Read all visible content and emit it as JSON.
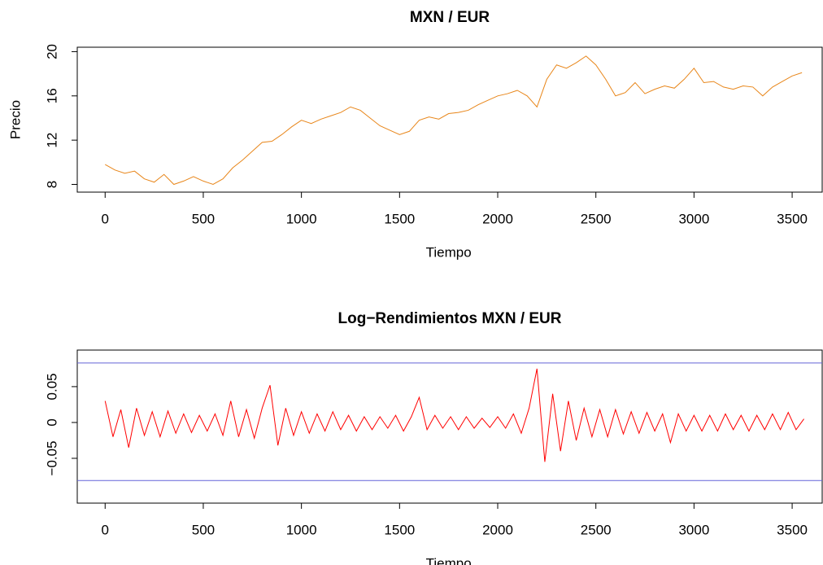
{
  "chart_data": [
    {
      "type": "line",
      "title": "MXN / EUR",
      "x_label": "Tiempo",
      "y_label": "Precio",
      "xlim": [
        -142,
        3653
      ],
      "ylim": [
        7.3,
        20.4
      ],
      "xticks": [
        0,
        500,
        1000,
        1500,
        2000,
        2500,
        3000,
        3500
      ],
      "yticks": [
        8,
        12,
        16,
        20
      ],
      "series": [
        {
          "color": "#e8861a",
          "x": [
            0,
            50,
            100,
            150,
            200,
            250,
            300,
            350,
            400,
            450,
            500,
            550,
            600,
            650,
            700,
            750,
            800,
            850,
            900,
            950,
            1000,
            1050,
            1100,
            1150,
            1200,
            1250,
            1300,
            1350,
            1400,
            1450,
            1500,
            1550,
            1600,
            1650,
            1700,
            1750,
            1800,
            1850,
            1900,
            1950,
            2000,
            2050,
            2100,
            2150,
            2200,
            2250,
            2300,
            2350,
            2400,
            2450,
            2500,
            2550,
            2600,
            2650,
            2700,
            2750,
            2800,
            2850,
            2900,
            2950,
            3000,
            3050,
            3100,
            3150,
            3200,
            3250,
            3300,
            3350,
            3400,
            3450,
            3500,
            3550
          ],
          "values": [
            9.8,
            9.3,
            9.0,
            9.2,
            8.5,
            8.2,
            8.9,
            8.0,
            8.3,
            8.7,
            8.3,
            8.0,
            8.5,
            9.5,
            10.2,
            11.0,
            11.8,
            11.9,
            12.5,
            13.2,
            13.8,
            13.5,
            13.9,
            14.2,
            14.5,
            15.0,
            14.7,
            14.0,
            13.3,
            12.9,
            12.5,
            12.8,
            13.8,
            14.1,
            13.9,
            14.4,
            14.5,
            14.7,
            15.2,
            15.6,
            16.0,
            16.2,
            16.5,
            16.0,
            15.0,
            17.5,
            18.8,
            18.5,
            19.0,
            19.6,
            18.8,
            17.5,
            16.0,
            16.3,
            17.2,
            16.2,
            16.6,
            16.9,
            16.7,
            17.5,
            18.5,
            17.2,
            17.3,
            16.8,
            16.6,
            16.9,
            16.8,
            16.0,
            16.8,
            17.3,
            17.8,
            18.1
          ]
        }
      ]
    },
    {
      "type": "line",
      "title": "Log−Rendimientos MXN / EUR",
      "x_label": "Tiempo",
      "xlim": [
        -142,
        3653
      ],
      "ylim": [
        -0.1125,
        0.101
      ],
      "xticks": [
        0,
        500,
        1000,
        1500,
        2000,
        2500,
        3000,
        3500
      ],
      "yticks": [
        {
          "value": -0.05,
          "label": "−0.05"
        },
        0,
        0.05
      ],
      "hlines": [
        {
          "value": 0.083,
          "color": "#6464d8"
        },
        {
          "value": -0.081,
          "color": "#6464d8"
        }
      ],
      "series": [
        {
          "color": "#ff0000",
          "x": [
            0,
            40,
            80,
            120,
            160,
            200,
            240,
            280,
            320,
            360,
            400,
            440,
            480,
            520,
            560,
            600,
            640,
            680,
            720,
            760,
            800,
            840,
            880,
            920,
            960,
            1000,
            1040,
            1080,
            1120,
            1160,
            1200,
            1240,
            1280,
            1320,
            1360,
            1400,
            1440,
            1480,
            1520,
            1560,
            1600,
            1640,
            1680,
            1720,
            1760,
            1800,
            1840,
            1880,
            1920,
            1960,
            2000,
            2040,
            2080,
            2120,
            2160,
            2200,
            2240,
            2280,
            2320,
            2360,
            2400,
            2440,
            2480,
            2520,
            2560,
            2600,
            2640,
            2680,
            2720,
            2760,
            2800,
            2840,
            2880,
            2920,
            2960,
            3000,
            3040,
            3080,
            3120,
            3160,
            3200,
            3240,
            3280,
            3320,
            3360,
            3400,
            3440,
            3480,
            3520,
            3560
          ],
          "values": [
            0.03,
            -0.02,
            0.018,
            -0.035,
            0.02,
            -0.018,
            0.015,
            -0.02,
            0.016,
            -0.015,
            0.012,
            -0.014,
            0.01,
            -0.012,
            0.012,
            -0.018,
            0.03,
            -0.02,
            0.018,
            -0.022,
            0.02,
            0.052,
            -0.032,
            0.02,
            -0.018,
            0.015,
            -0.015,
            0.012,
            -0.012,
            0.015,
            -0.01,
            0.01,
            -0.012,
            0.008,
            -0.01,
            0.008,
            -0.008,
            0.01,
            -0.012,
            0.008,
            0.035,
            -0.01,
            0.01,
            -0.008,
            0.008,
            -0.01,
            0.008,
            -0.008,
            0.006,
            -0.007,
            0.008,
            -0.008,
            0.012,
            -0.015,
            0.02,
            0.075,
            -0.055,
            0.04,
            -0.04,
            0.03,
            -0.025,
            0.02,
            -0.02,
            0.018,
            -0.02,
            0.018,
            -0.016,
            0.015,
            -0.015,
            0.014,
            -0.012,
            0.012,
            -0.028,
            0.012,
            -0.012,
            0.01,
            -0.012,
            0.01,
            -0.012,
            0.012,
            -0.01,
            0.01,
            -0.012,
            0.01,
            -0.01,
            0.012,
            -0.01,
            0.014,
            -0.01,
            0.005
          ]
        }
      ]
    }
  ]
}
